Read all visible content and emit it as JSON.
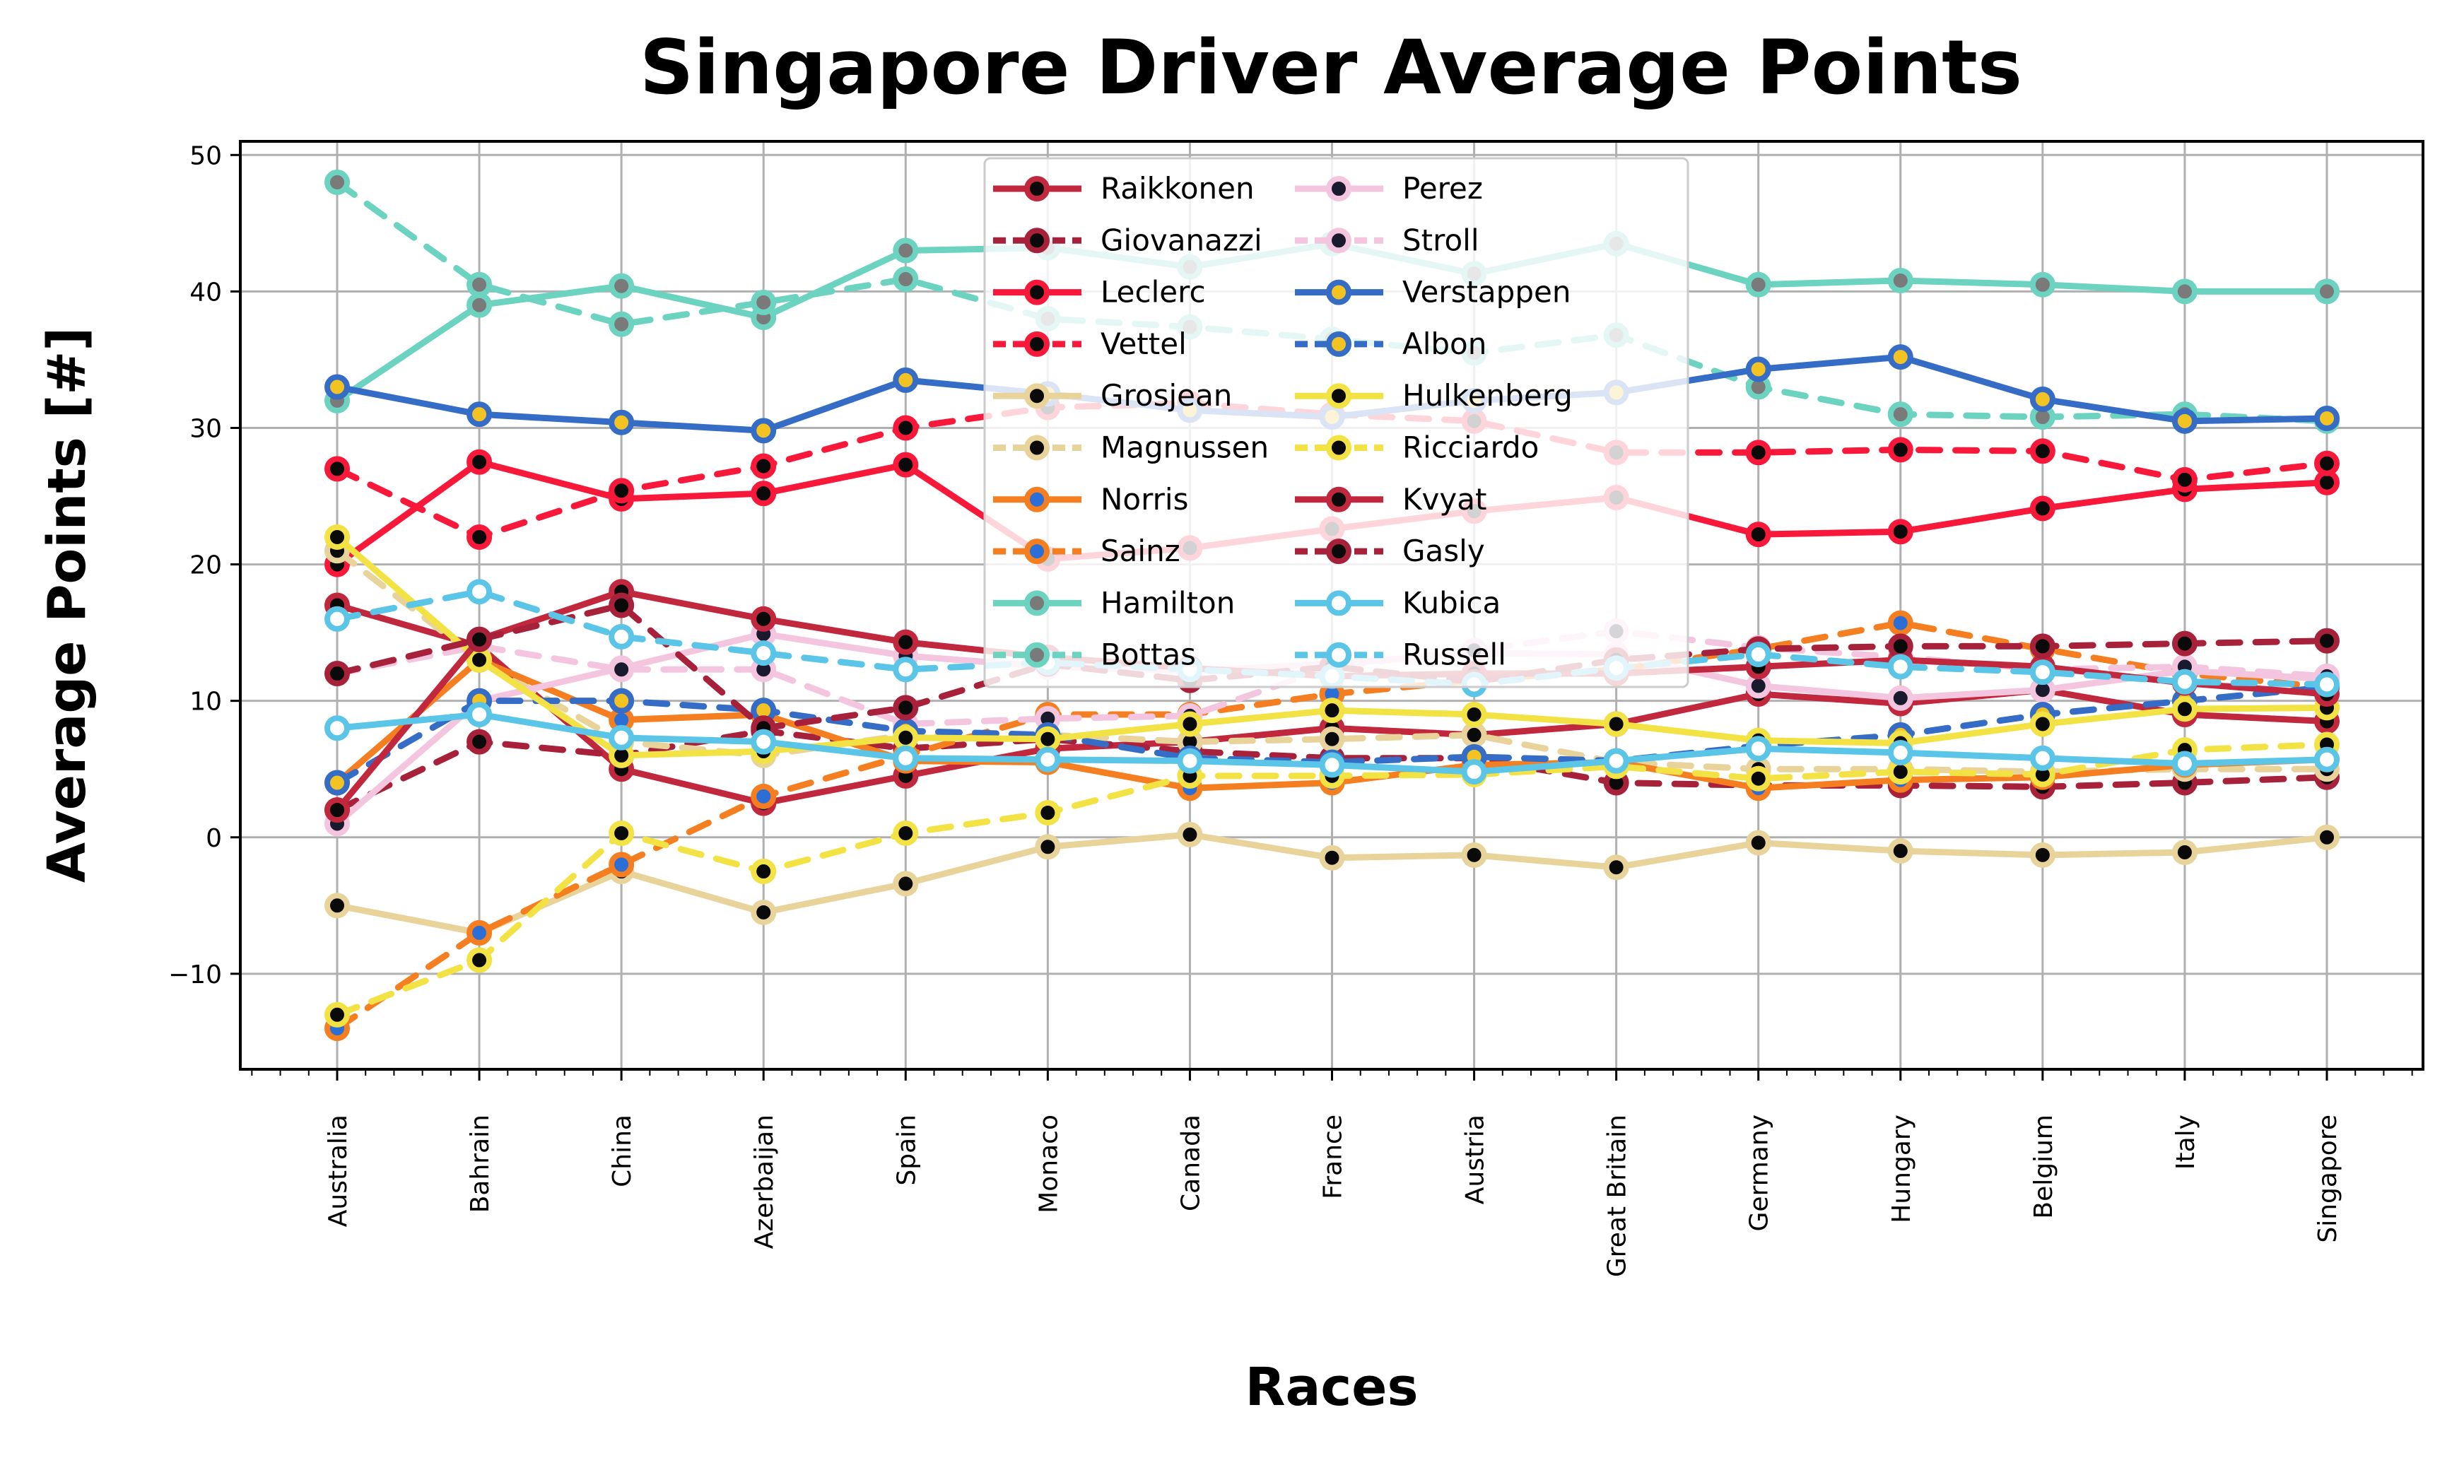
{
  "chart_data": {
    "type": "line",
    "title": "Singapore Driver Average Points",
    "xlabel": "Races",
    "ylabel": "Average Points [#]",
    "ylim": [
      -17,
      51
    ],
    "yticks": [
      -10,
      0,
      10,
      20,
      30,
      40,
      50
    ],
    "ytick_labels": [
      "−10",
      "0",
      "10",
      "20",
      "30",
      "40",
      "50"
    ],
    "grid": true,
    "legend_position": "top-center",
    "legend_columns": 2,
    "categories": [
      "Australia",
      "Bahrain",
      "China",
      "Azerbaijan",
      "Spain",
      "Monaco",
      "Canada",
      "France",
      "Austria",
      "Great Britain",
      "Germany",
      "Hungary",
      "Belgium",
      "Italy",
      "Singapore"
    ],
    "series": [
      {
        "name": "Raikkonen",
        "color": "#C1273D",
        "dash": "solid",
        "marker": "#0a0a0a",
        "values": [
          17,
          14,
          5,
          2.5,
          4.5,
          6.5,
          7,
          8,
          7.5,
          8.3,
          10.5,
          9.8,
          10.8,
          9,
          8.5
        ]
      },
      {
        "name": "Giovanazzi",
        "color": "#A8213A",
        "dash": "dotted",
        "marker": "#0a0a0a",
        "values": [
          2,
          7,
          6,
          7.8,
          6.5,
          7.2,
          6.3,
          5.8,
          5.8,
          4,
          3.8,
          3.8,
          3.7,
          4,
          4.4
        ]
      },
      {
        "name": "Leclerc",
        "color": "#F7183A",
        "dash": "solid",
        "marker": "#0a0a0a",
        "values": [
          20,
          27.5,
          24.8,
          25.2,
          27.3,
          20.4,
          21.2,
          22.6,
          23.9,
          24.9,
          22.2,
          22.4,
          24.1,
          25.5,
          26
        ]
      },
      {
        "name": "Vettel",
        "color": "#F7183A",
        "dash": "dotted",
        "marker": "#0a0a0a",
        "values": [
          27,
          22,
          25.4,
          27.2,
          30,
          31.5,
          31.8,
          31,
          30.5,
          28.2,
          28.2,
          28.4,
          28.3,
          26.2,
          27.4
        ]
      },
      {
        "name": "Grosjean",
        "color": "#E8D49B",
        "dash": "solid",
        "marker": "#0a0a0a",
        "values": [
          -5,
          -7,
          -2.5,
          -5.5,
          -3.4,
          -0.7,
          0.2,
          -1.5,
          -1.3,
          -2.2,
          -0.4,
          -1,
          -1.3,
          -1.1,
          0
        ]
      },
      {
        "name": "Magnussen",
        "color": "#E8D49B",
        "dash": "dotted",
        "marker": "#0a0a0a",
        "values": [
          21,
          13,
          7,
          6,
          7.5,
          7.5,
          7,
          7.2,
          7.5,
          5.5,
          5,
          5,
          4.8,
          5,
          5
        ]
      },
      {
        "name": "Norris",
        "color": "#F47E20",
        "dash": "solid",
        "marker": "#2b6fd6",
        "values": [
          4,
          13,
          8.6,
          9,
          5.6,
          5.5,
          3.6,
          4,
          5.3,
          5.5,
          3.6,
          4.2,
          4.4,
          5.3,
          5.7
        ]
      },
      {
        "name": "Sainz",
        "color": "#F47E20",
        "dash": "dotted",
        "marker": "#2b6fd6",
        "values": [
          -14,
          -7,
          -2,
          3,
          6,
          9,
          9,
          10.5,
          11.5,
          12.3,
          13.8,
          15.7,
          13.8,
          12,
          11
        ]
      },
      {
        "name": "Hamilton",
        "color": "#6BD3BF",
        "dash": "solid",
        "marker": "#7a7a7a",
        "values": [
          32,
          39,
          40.4,
          38.1,
          43,
          43.2,
          41.8,
          43.5,
          41.3,
          43.5,
          40.5,
          40.8,
          40.5,
          40,
          40
        ]
      },
      {
        "name": "Bottas",
        "color": "#6BD3BF",
        "dash": "dotted",
        "marker": "#7a7a7a",
        "values": [
          48,
          40.5,
          37.6,
          39.2,
          40.9,
          38,
          37.4,
          36.5,
          35.5,
          36.8,
          33,
          31,
          30.8,
          31,
          30.5
        ]
      },
      {
        "name": "Perez",
        "color": "#F4C5DF",
        "dash": "solid",
        "marker": "#1a1a2e",
        "values": [
          1,
          10,
          12.4,
          14.9,
          13.3,
          12.5,
          12.2,
          12.7,
          13.5,
          13.4,
          11.1,
          10.2,
          10.8,
          12.2,
          11.6
        ]
      },
      {
        "name": "Stroll",
        "color": "#F4C5DF",
        "dash": "dotted",
        "marker": "#1a1a2e",
        "values": [
          12,
          14,
          12.3,
          12.3,
          8.3,
          8.7,
          8.9,
          12.5,
          13.7,
          15.1,
          13.9,
          13.2,
          12.3,
          12.5,
          11.8
        ]
      },
      {
        "name": "Verstappen",
        "color": "#356CC6",
        "dash": "solid",
        "marker": "#f2c322",
        "values": [
          33,
          31,
          30.4,
          29.8,
          33.5,
          32.5,
          31.3,
          30.8,
          32,
          32.6,
          34.3,
          35.2,
          32.1,
          30.5,
          30.7
        ]
      },
      {
        "name": "Albon",
        "color": "#356CC6",
        "dash": "dotted",
        "marker": "#f2c322",
        "values": [
          4,
          10,
          10,
          9.3,
          7.8,
          7.5,
          5.8,
          5.5,
          5.9,
          5.6,
          6.7,
          7.5,
          9,
          10,
          11
        ]
      },
      {
        "name": "Hulkenberg",
        "color": "#F2E244",
        "dash": "solid",
        "marker": "#0a0a0a",
        "values": [
          22,
          13,
          6,
          6.3,
          7.3,
          7.2,
          8.3,
          9.3,
          9,
          8.3,
          7.1,
          6.9,
          8.3,
          9.4,
          9.5
        ]
      },
      {
        "name": "Ricciardo",
        "color": "#F2E244",
        "dash": "dotted",
        "marker": "#0a0a0a",
        "values": [
          -13,
          -9,
          0.3,
          -2.5,
          0.3,
          1.8,
          4.5,
          4.5,
          4.6,
          5.2,
          4.3,
          4.8,
          4.6,
          6.4,
          6.8
        ]
      },
      {
        "name": "Kvyat",
        "color": "#C1273D",
        "dash": "solid",
        "marker": "#0a0a0a",
        "values": [
          2,
          14.5,
          18,
          16,
          14.3,
          13.2,
          12.4,
          11.8,
          12,
          12,
          12.5,
          13,
          12.5,
          11.3,
          10.5
        ]
      },
      {
        "name": "Gasly",
        "color": "#A8213A",
        "dash": "dotted",
        "marker": "#0a0a0a",
        "values": [
          12,
          14.5,
          17,
          8,
          9.5,
          12.7,
          11.5,
          12.5,
          11.4,
          13,
          13.8,
          14,
          14,
          14.2,
          14.4
        ]
      },
      {
        "name": "Kubica",
        "color": "#5BC5E8",
        "dash": "solid",
        "marker": "#ffffff",
        "values": [
          8,
          9,
          7.3,
          7,
          5.8,
          5.7,
          5.6,
          5.3,
          4.8,
          5.6,
          6.5,
          6.2,
          5.8,
          5.4,
          5.7
        ]
      },
      {
        "name": "Russell",
        "color": "#5BC5E8",
        "dash": "dotted",
        "marker": "#ffffff",
        "values": [
          16,
          18,
          14.7,
          13.5,
          12.3,
          12.8,
          12.3,
          11.8,
          11.2,
          12.4,
          13.4,
          12.5,
          12.1,
          11.4,
          11.2
        ]
      }
    ]
  }
}
